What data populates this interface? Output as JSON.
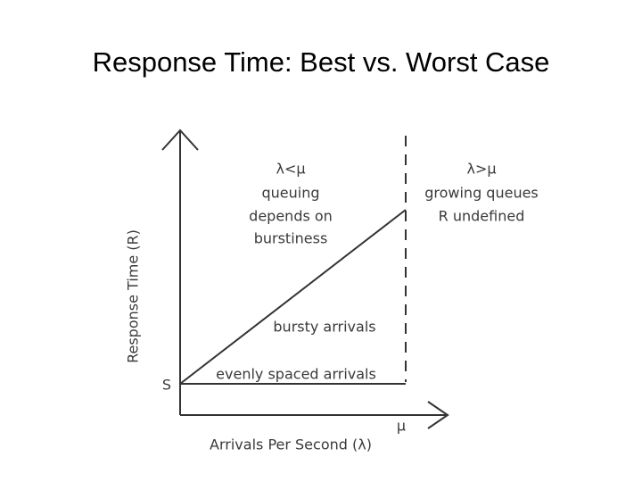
{
  "title": "Response Time: Best vs. Worst Case",
  "diagram": {
    "y_axis_label": "Response Time (R)",
    "x_axis_label": "Arrivals Per Second (λ)",
    "s_label": "S",
    "mu_label": "μ",
    "left_region": [
      "λ<μ",
      "queuing",
      "depends on",
      "burstiness"
    ],
    "right_region": [
      "λ>μ",
      "growing queues",
      "R undefined"
    ],
    "bursty_label": "bursty arrivals",
    "even_label": "evenly spaced arrivals"
  }
}
